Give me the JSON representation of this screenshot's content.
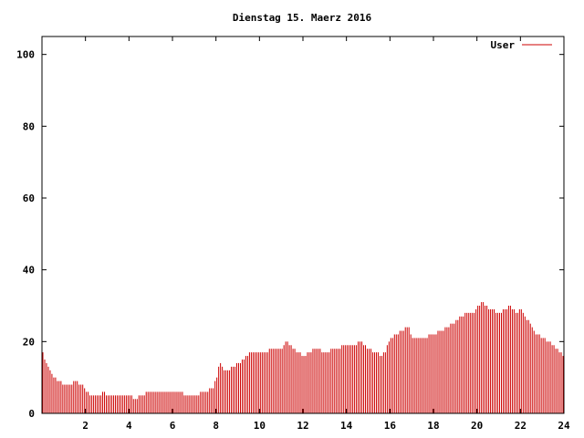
{
  "chart_data": {
    "type": "bar",
    "title": "Dienstag 15. Maerz 2016",
    "xlabel": "",
    "ylabel": "",
    "xlim": [
      0,
      24
    ],
    "ylim": [
      0,
      105
    ],
    "x_ticks": [
      "2",
      "4",
      "6",
      "8",
      "10",
      "12",
      "14",
      "16",
      "18",
      "20",
      "22",
      "24"
    ],
    "y_ticks": [
      "0",
      "20",
      "40",
      "60",
      "80",
      "100"
    ],
    "grid": false,
    "legend_position": "top-right",
    "series": [
      {
        "name": "User",
        "color": "#cc0000",
        "hourly_profile": [
          [
            0.0,
            17
          ],
          [
            0.1,
            15
          ],
          [
            0.3,
            12
          ],
          [
            0.5,
            10
          ],
          [
            0.8,
            9
          ],
          [
            1.0,
            8
          ],
          [
            1.3,
            8
          ],
          [
            1.5,
            9
          ],
          [
            1.8,
            8
          ],
          [
            2.0,
            6
          ],
          [
            2.2,
            5
          ],
          [
            2.4,
            5
          ],
          [
            2.6,
            5
          ],
          [
            2.8,
            6
          ],
          [
            3.0,
            5
          ],
          [
            3.5,
            5
          ],
          [
            4.0,
            5
          ],
          [
            4.2,
            4
          ],
          [
            4.5,
            5
          ],
          [
            5.0,
            6
          ],
          [
            5.5,
            6
          ],
          [
            6.0,
            6
          ],
          [
            6.3,
            6
          ],
          [
            6.6,
            5
          ],
          [
            7.0,
            5
          ],
          [
            7.5,
            6
          ],
          [
            7.8,
            7
          ],
          [
            8.0,
            10
          ],
          [
            8.1,
            14
          ],
          [
            8.4,
            12
          ],
          [
            8.8,
            13
          ],
          [
            9.2,
            15
          ],
          [
            9.6,
            17
          ],
          [
            9.9,
            17
          ],
          [
            10.2,
            17
          ],
          [
            10.5,
            18
          ],
          [
            11.0,
            18
          ],
          [
            11.2,
            20
          ],
          [
            11.5,
            18
          ],
          [
            12.0,
            16
          ],
          [
            12.5,
            18
          ],
          [
            13.0,
            17
          ],
          [
            13.5,
            18
          ],
          [
            14.0,
            19
          ],
          [
            14.4,
            19
          ],
          [
            14.6,
            20
          ],
          [
            15.0,
            18
          ],
          [
            15.3,
            17
          ],
          [
            15.6,
            16
          ],
          [
            15.8,
            18
          ],
          [
            16.0,
            21
          ],
          [
            16.3,
            22
          ],
          [
            16.5,
            23
          ],
          [
            16.8,
            24
          ],
          [
            17.0,
            21
          ],
          [
            17.5,
            21
          ],
          [
            18.0,
            22
          ],
          [
            18.3,
            23
          ],
          [
            18.6,
            24
          ],
          [
            18.9,
            25
          ],
          [
            19.2,
            27
          ],
          [
            19.5,
            28
          ],
          [
            19.8,
            28
          ],
          [
            20.0,
            30
          ],
          [
            20.2,
            31
          ],
          [
            20.5,
            29
          ],
          [
            21.0,
            28
          ],
          [
            21.2,
            29
          ],
          [
            21.5,
            30
          ],
          [
            21.8,
            28
          ],
          [
            22.0,
            29
          ],
          [
            22.2,
            27
          ],
          [
            22.4,
            25
          ],
          [
            22.7,
            22
          ],
          [
            23.0,
            21
          ],
          [
            23.3,
            20
          ],
          [
            23.6,
            18
          ],
          [
            23.8,
            17
          ],
          [
            24.0,
            16
          ]
        ]
      }
    ]
  }
}
